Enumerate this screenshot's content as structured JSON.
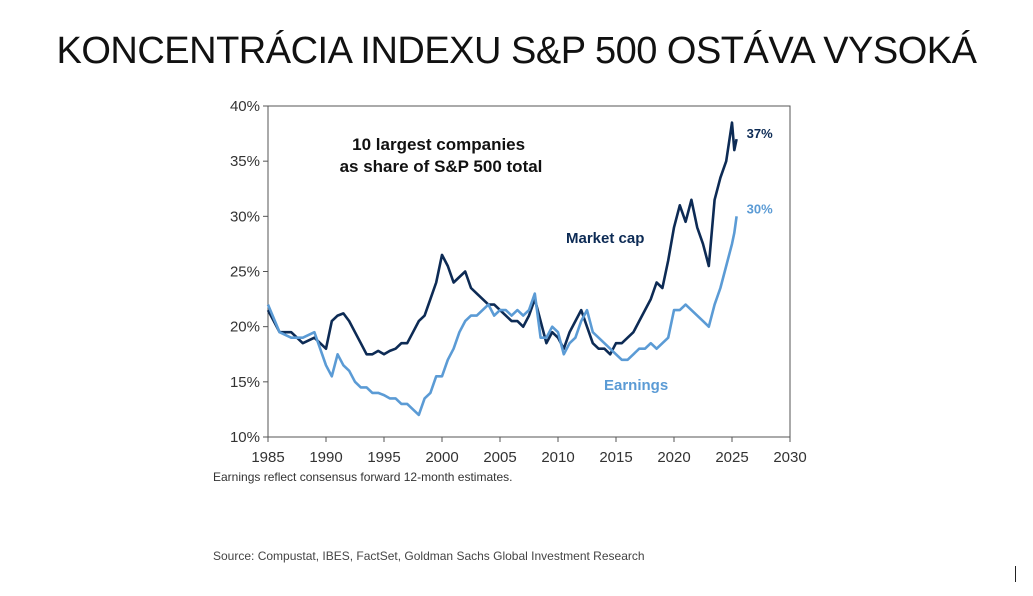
{
  "slide_title": "KONCENTRÁCIA INDEXU S&P 500 OSTÁVA VYSOKÁ",
  "note": "Earnings reflect consensus forward 12-month estimates.",
  "source": "Source: Compustat, IBES, FactSet, Goldman Sachs Global Investment Research",
  "colors": {
    "market_cap": "#0d2b55",
    "earnings": "#5b9bd5",
    "axis": "#555555",
    "text": "#222222"
  },
  "chart_data": {
    "type": "line",
    "title": "10 largest companies\nas share of S&P 500 total",
    "xlabel": "",
    "ylabel": "",
    "xlim": [
      1985,
      2030
    ],
    "ylim": [
      10,
      40
    ],
    "x_ticks": [
      "1985",
      "1990",
      "1995",
      "2000",
      "2005",
      "2010",
      "2015",
      "2020",
      "2025",
      "2030"
    ],
    "y_ticks": [
      "10%",
      "15%",
      "20%",
      "25%",
      "30%",
      "35%",
      "40%"
    ],
    "grid": false,
    "series": [
      {
        "name": "Market cap",
        "end_label": "37%",
        "color": "#0d2b55",
        "x": [
          1985.0,
          1986.0,
          1987.0,
          1988.0,
          1989.0,
          1990.0,
          1990.5,
          1991.0,
          1991.5,
          1992.0,
          1992.5,
          1993.0,
          1993.5,
          1994.0,
          1994.5,
          1995.0,
          1995.5,
          1996.0,
          1996.5,
          1997.0,
          1997.5,
          1998.0,
          1998.5,
          1999.0,
          1999.5,
          2000.0,
          2000.5,
          2001.0,
          2001.5,
          2002.0,
          2002.5,
          2003.0,
          2003.5,
          2004.0,
          2004.5,
          2005.0,
          2005.5,
          2006.0,
          2006.5,
          2007.0,
          2007.5,
          2008.0,
          2008.5,
          2009.0,
          2009.5,
          2010.0,
          2010.5,
          2011.0,
          2011.5,
          2012.0,
          2012.5,
          2013.0,
          2013.5,
          2014.0,
          2014.5,
          2015.0,
          2015.5,
          2016.0,
          2016.5,
          2017.0,
          2017.5,
          2018.0,
          2018.5,
          2019.0,
          2019.5,
          2020.0,
          2020.5,
          2021.0,
          2021.5,
          2022.0,
          2022.5,
          2023.0,
          2023.5,
          2024.0,
          2024.5,
          2025.0,
          2025.2,
          2025.4
        ],
        "values": [
          21.5,
          19.5,
          19.5,
          18.5,
          19.0,
          18.0,
          20.5,
          21.0,
          21.2,
          20.5,
          19.5,
          18.5,
          17.5,
          17.5,
          17.8,
          17.5,
          17.8,
          18.0,
          18.5,
          18.5,
          19.5,
          20.5,
          21.0,
          22.5,
          24.0,
          26.5,
          25.5,
          24.0,
          24.5,
          25.0,
          23.5,
          23.0,
          22.5,
          22.0,
          22.0,
          21.5,
          21.0,
          20.5,
          20.5,
          20.0,
          21.0,
          22.5,
          20.5,
          18.5,
          19.5,
          19.0,
          18.0,
          19.5,
          20.5,
          21.5,
          20.0,
          18.5,
          18.0,
          18.0,
          17.5,
          18.5,
          18.5,
          19.0,
          19.5,
          20.5,
          21.5,
          22.5,
          24.0,
          23.5,
          26.0,
          29.0,
          31.0,
          29.5,
          31.5,
          29.0,
          27.5,
          25.5,
          31.5,
          33.5,
          35.0,
          38.5,
          36.0,
          37.0
        ]
      },
      {
        "name": "Earnings",
        "end_label": "30%",
        "color": "#5b9bd5",
        "x": [
          1985.0,
          1986.0,
          1987.0,
          1988.0,
          1989.0,
          1990.0,
          1990.5,
          1991.0,
          1991.5,
          1992.0,
          1992.5,
          1993.0,
          1993.5,
          1994.0,
          1994.5,
          1995.0,
          1995.5,
          1996.0,
          1996.5,
          1997.0,
          1997.5,
          1998.0,
          1998.5,
          1999.0,
          1999.5,
          2000.0,
          2000.5,
          2001.0,
          2001.5,
          2002.0,
          2002.5,
          2003.0,
          2003.5,
          2004.0,
          2004.5,
          2005.0,
          2005.5,
          2006.0,
          2006.5,
          2007.0,
          2007.5,
          2008.0,
          2008.5,
          2009.0,
          2009.5,
          2010.0,
          2010.5,
          2011.0,
          2011.5,
          2012.0,
          2012.5,
          2013.0,
          2013.5,
          2014.0,
          2014.5,
          2015.0,
          2015.5,
          2016.0,
          2016.5,
          2017.0,
          2017.5,
          2018.0,
          2018.5,
          2019.0,
          2019.5,
          2020.0,
          2020.5,
          2021.0,
          2021.5,
          2022.0,
          2022.5,
          2023.0,
          2023.5,
          2024.0,
          2024.5,
          2025.0,
          2025.2,
          2025.4
        ],
        "values": [
          22.0,
          19.5,
          19.0,
          19.0,
          19.5,
          16.5,
          15.5,
          17.5,
          16.5,
          16.0,
          15.0,
          14.5,
          14.5,
          14.0,
          14.0,
          13.8,
          13.5,
          13.5,
          13.0,
          13.0,
          12.5,
          12.0,
          13.5,
          14.0,
          15.5,
          15.5,
          17.0,
          18.0,
          19.5,
          20.5,
          21.0,
          21.0,
          21.5,
          22.0,
          21.0,
          21.5,
          21.5,
          21.0,
          21.5,
          21.0,
          21.5,
          23.0,
          19.0,
          19.0,
          20.0,
          19.5,
          17.5,
          18.5,
          19.0,
          20.5,
          21.5,
          19.5,
          19.0,
          18.5,
          18.0,
          17.5,
          17.0,
          17.0,
          17.5,
          18.0,
          18.0,
          18.5,
          18.0,
          18.5,
          19.0,
          21.5,
          21.5,
          22.0,
          21.5,
          21.0,
          20.5,
          20.0,
          22.0,
          23.5,
          25.5,
          27.5,
          28.5,
          30.0
        ]
      }
    ]
  }
}
